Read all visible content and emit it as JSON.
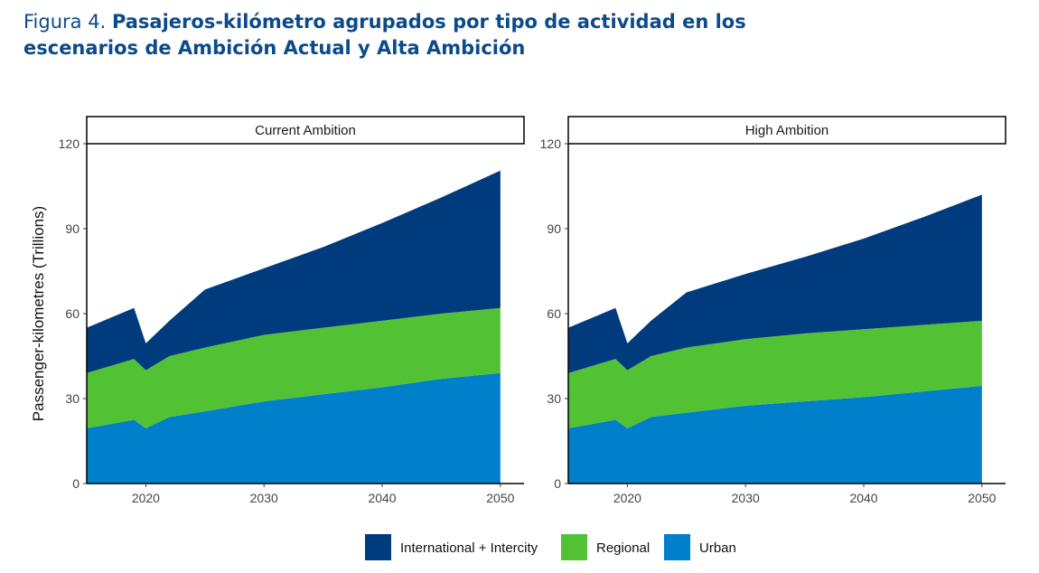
{
  "figure": {
    "label": "Figura 4.",
    "title": "Pasajeros-kilómetro agrupados por tipo de actividad en los escenarios de Ambición Actual y Alta Ambición"
  },
  "colors": {
    "International + Intercity": "#003b7d",
    "Regional": "#52c234",
    "Urban": "#0080cb"
  },
  "chart_data": [
    {
      "type": "area",
      "stacked": true,
      "title": "Current Ambition",
      "xlabel": "",
      "ylabel": "Passenger-kilometres (Trillions)",
      "xlim": [
        2015,
        2052
      ],
      "ylim": [
        0,
        120
      ],
      "xticks": [
        2020,
        2030,
        2040,
        2050
      ],
      "yticks": [
        0,
        30,
        60,
        90,
        120
      ],
      "grid": false,
      "x": [
        2015,
        2019,
        2020,
        2022,
        2025,
        2030,
        2035,
        2040,
        2045,
        2050
      ],
      "series": [
        {
          "name": "Urban",
          "values": [
            19.5,
            22.5,
            19.5,
            23.5,
            25.5,
            29,
            31.5,
            34,
            37,
            39
          ]
        },
        {
          "name": "Regional",
          "values": [
            19.5,
            21.5,
            20.5,
            21.5,
            22.5,
            23.5,
            23.5,
            23.5,
            23,
            23
          ]
        },
        {
          "name": "International + Intercity",
          "values": [
            16,
            18,
            9.5,
            12.5,
            20.5,
            23.5,
            28.5,
            34.5,
            41,
            48.5
          ]
        }
      ]
    },
    {
      "type": "area",
      "stacked": true,
      "title": "High Ambition",
      "xlabel": "",
      "ylabel": "",
      "xlim": [
        2015,
        2052
      ],
      "ylim": [
        0,
        120
      ],
      "xticks": [
        2020,
        2030,
        2040,
        2050
      ],
      "yticks": [
        0,
        30,
        60,
        90,
        120
      ],
      "grid": false,
      "x": [
        2015,
        2019,
        2020,
        2022,
        2025,
        2030,
        2035,
        2040,
        2045,
        2050
      ],
      "series": [
        {
          "name": "Urban",
          "values": [
            19.5,
            22.5,
            19.5,
            23.5,
            25,
            27.5,
            29,
            30.5,
            32.5,
            34.5
          ]
        },
        {
          "name": "Regional",
          "values": [
            19.5,
            21.5,
            20.5,
            21.5,
            23,
            23.5,
            24,
            24,
            23.5,
            23
          ]
        },
        {
          "name": "International + Intercity",
          "values": [
            16,
            18,
            9.5,
            12.5,
            19.5,
            23,
            27,
            32,
            38,
            44.5
          ]
        }
      ]
    }
  ],
  "legend": {
    "placement": "bottom",
    "items": [
      "International + Intercity",
      "Regional",
      "Urban"
    ]
  }
}
